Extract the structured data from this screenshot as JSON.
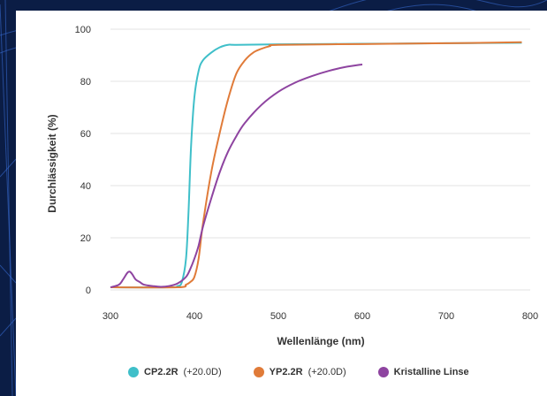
{
  "chart_data": {
    "type": "line",
    "xlabel": "Wellenlänge (nm)",
    "ylabel": "Durchlässigkeit (%)",
    "xlim": [
      300,
      800
    ],
    "ylim": [
      0,
      100
    ],
    "xticks": [
      300,
      400,
      500,
      600,
      700,
      800
    ],
    "yticks": [
      0,
      20,
      40,
      60,
      80,
      100
    ],
    "grid": "horizontal",
    "legend_position": "bottom",
    "series": [
      {
        "name": "CP2.2R",
        "suffix": "(+20.0D)",
        "color": "#3fbfc9",
        "x": [
          300,
          370,
          380,
          385,
          390,
          393,
          396,
          400,
          405,
          410,
          420,
          430,
          440,
          450,
          500,
          600,
          700,
          790
        ],
        "y": [
          1,
          1,
          1.5,
          3,
          12,
          30,
          55,
          74,
          84,
          88,
          91,
          93,
          94,
          94,
          94.2,
          94.4,
          94.6,
          94.8
        ]
      },
      {
        "name": "YP2.2R",
        "suffix": "(+20.0D)",
        "color": "#e07b39",
        "x": [
          300,
          380,
          390,
          395,
          400,
          405,
          410,
          420,
          430,
          440,
          450,
          460,
          470,
          480,
          490,
          500,
          600,
          700,
          790
        ],
        "y": [
          1,
          1,
          2,
          3,
          5,
          12,
          25,
          45,
          60,
          73,
          83,
          88,
          91,
          92.5,
          93.5,
          94,
          94.3,
          94.6,
          95
        ]
      },
      {
        "name": "Kristalline Linse",
        "suffix": "",
        "color": "#8e44a0",
        "x": [
          300,
          310,
          315,
          320,
          323,
          326,
          330,
          335,
          340,
          350,
          360,
          370,
          380,
          390,
          395,
          400,
          405,
          410,
          420,
          430,
          440,
          450,
          460,
          480,
          500,
          520,
          540,
          560,
          580,
          600
        ],
        "y": [
          1,
          2,
          4,
          6.5,
          7,
          6,
          4,
          3,
          2,
          1.5,
          1.2,
          1.5,
          2.5,
          5,
          8,
          12,
          17,
          24,
          35,
          45,
          53,
          59,
          64,
          71,
          76,
          79.5,
          82,
          84,
          85.5,
          86.5
        ]
      }
    ]
  }
}
